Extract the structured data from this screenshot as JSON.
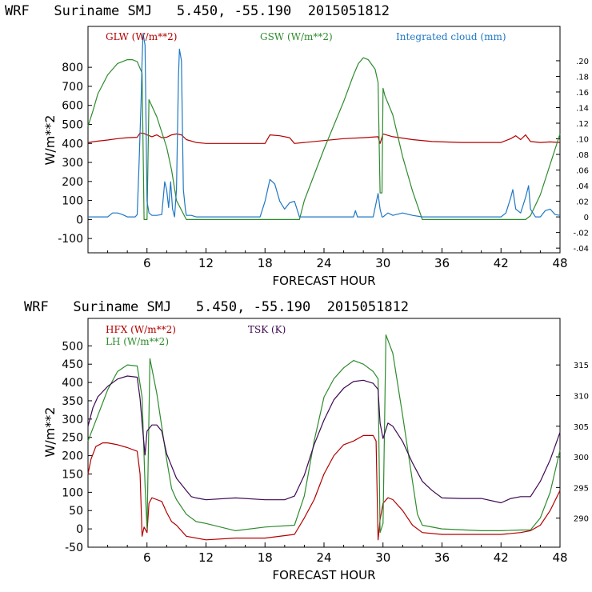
{
  "chart_data": [
    {
      "type": "line",
      "title": "WRF   Suriname SMJ   5.450, -55.190  2015051812",
      "xlabel": "FORECAST HOUR",
      "ylabel": "W/m**2",
      "xlim": [
        0,
        48
      ],
      "ylim": [
        -175,
        1015
      ],
      "xticks": [
        "6",
        "12",
        "18",
        "24",
        "30",
        "36",
        "42",
        "48"
      ],
      "yticks": [
        "800",
        "700",
        "600",
        "500",
        "400",
        "300",
        "200",
        "100",
        "0",
        "-100"
      ],
      "y2lim": [
        -0.046,
        0.244
      ],
      "y2ticks": [
        ".20",
        ".18",
        ".16",
        ".14",
        ".12",
        ".10",
        ".08",
        ".06",
        ".04",
        ".02",
        "0",
        "-.02",
        "-.04"
      ],
      "series": [
        {
          "name": "GLW (W/m**2)",
          "axis": "left",
          "color": "#b30000",
          "x": [
            0,
            1,
            2,
            3,
            4,
            5,
            5.3,
            5.7,
            6,
            6.5,
            7,
            7.5,
            8,
            8.5,
            9,
            9.5,
            10,
            11,
            12,
            14,
            16,
            18,
            18.5,
            19.5,
            20.5,
            21,
            22,
            24,
            26,
            28,
            29.5,
            29.7,
            30,
            31,
            33,
            35,
            38,
            40,
            42,
            43,
            43.5,
            44,
            44.5,
            45,
            46,
            47,
            48
          ],
          "y": [
            405,
            412,
            418,
            425,
            430,
            432,
            455,
            452,
            445,
            435,
            445,
            430,
            432,
            445,
            450,
            445,
            420,
            405,
            400,
            400,
            400,
            400,
            445,
            440,
            430,
            400,
            405,
            415,
            425,
            430,
            435,
            400,
            450,
            435,
            420,
            410,
            405,
            405,
            405,
            425,
            440,
            420,
            445,
            410,
            405,
            408,
            405
          ]
        },
        {
          "name": "GSW (W/m**2)",
          "axis": "left",
          "color": "#2e8b2e",
          "x": [
            0,
            0.5,
            1,
            2,
            3,
            4,
            4.5,
            5,
            5.5,
            5.7,
            6,
            6.2,
            7,
            8,
            8.5,
            9,
            10,
            11,
            12,
            21.5,
            22,
            24,
            26,
            27,
            27.5,
            28,
            28.5,
            29.2,
            29.5,
            29.7,
            29.9,
            30,
            30.2,
            31,
            32,
            33,
            34,
            44.5,
            45,
            46,
            47,
            48
          ],
          "y": [
            490,
            570,
            660,
            760,
            820,
            840,
            840,
            830,
            770,
            0,
            0,
            630,
            540,
            380,
            260,
            100,
            0,
            0,
            0,
            0,
            100,
            370,
            620,
            760,
            820,
            850,
            840,
            790,
            720,
            140,
            140,
            690,
            650,
            550,
            330,
            150,
            0,
            0,
            20,
            130,
            290,
            450
          ]
        },
        {
          "name": "Integrated cloud (mm)",
          "axis": "right",
          "color": "#1f77c4",
          "x": [
            0,
            2,
            2.5,
            3,
            3.5,
            4,
            4.8,
            5,
            5.2,
            5.4,
            5.5,
            5.6,
            5.8,
            6,
            6.2,
            6.5,
            7,
            7.5,
            7.8,
            8,
            8.2,
            8.4,
            8.6,
            8.8,
            9,
            9.2,
            9.3,
            9.5,
            9.7,
            9.9,
            10,
            10.5,
            11,
            12,
            17.5,
            18,
            18.5,
            19,
            19.5,
            20,
            20.5,
            21,
            21.5,
            27,
            27.2,
            27.4,
            29,
            29.5,
            29.7,
            29.9,
            30,
            30.5,
            31,
            32,
            33,
            34,
            42,
            42.5,
            43,
            43.2,
            43.5,
            44,
            44.5,
            44.8,
            45,
            45.5,
            46,
            46.5,
            47,
            47.5,
            48
          ],
          "y": [
            0,
            0,
            0.005,
            0.005,
            0.003,
            0,
            0,
            0.003,
            0.07,
            0.15,
            0.2,
            0.235,
            0.22,
            0.02,
            0.005,
            0.002,
            0.002,
            0.003,
            0.045,
            0.035,
            0.012,
            0.045,
            0.01,
            0,
            0.035,
            0.18,
            0.215,
            0.2,
            0.035,
            0.01,
            0.002,
            0.002,
            0,
            0,
            0,
            0.02,
            0.048,
            0.042,
            0.02,
            0.01,
            0.018,
            0.02,
            0,
            0,
            0.008,
            0,
            0,
            0.03,
            0.01,
            0,
            0,
            0.005,
            0.002,
            0.005,
            0.002,
            0,
            0,
            0.005,
            0.025,
            0.035,
            0.01,
            0.005,
            0.025,
            0.04,
            0.01,
            0,
            0,
            0.008,
            0.01,
            0.003,
            0.002
          ]
        }
      ]
    },
    {
      "type": "line",
      "title": "WRF   Suriname SMJ   5.450, -55.190  2015051812",
      "xlabel": "FORECAST HOUR",
      "ylabel": "W/m**2",
      "xlim": [
        0,
        48
      ],
      "ylim": [
        -50,
        575
      ],
      "xticks": [
        "6",
        "12",
        "18",
        "24",
        "30",
        "36",
        "42",
        "48"
      ],
      "yticks": [
        "500",
        "450",
        "400",
        "350",
        "300",
        "250",
        "200",
        "150",
        "100",
        "50",
        "0",
        "-50"
      ],
      "y2lim": [
        285.25,
        322.6
      ],
      "y2ticks": [
        "315",
        "310",
        "305",
        "300",
        "295",
        "290"
      ],
      "series": [
        {
          "name": "HFX (W/m**2)",
          "axis": "left",
          "color": "#b30000",
          "x": [
            0,
            0.3,
            0.8,
            1.5,
            2,
            3,
            4,
            5,
            5.3,
            5.5,
            5.7,
            6,
            6.2,
            6.5,
            7,
            7.5,
            8,
            8.5,
            9,
            10,
            12,
            15,
            18,
            21,
            22,
            23,
            24,
            25,
            26,
            27,
            28,
            29,
            29.3,
            29.5,
            29.7,
            30,
            30.5,
            31,
            32,
            33,
            34,
            36,
            40,
            42,
            44,
            45,
            46,
            47,
            48
          ],
          "y": [
            150,
            190,
            225,
            235,
            235,
            230,
            222,
            212,
            150,
            -20,
            5,
            -10,
            70,
            85,
            80,
            75,
            45,
            20,
            10,
            -20,
            -30,
            -25,
            -25,
            -15,
            30,
            80,
            150,
            200,
            230,
            240,
            255,
            255,
            240,
            -30,
            25,
            70,
            85,
            80,
            50,
            10,
            -10,
            -15,
            -15,
            -15,
            -10,
            -5,
            10,
            50,
            105
          ]
        },
        {
          "name": "LH (W/m**2)",
          "axis": "left",
          "color": "#2e8b2e",
          "x": [
            0,
            1,
            2,
            3,
            4,
            5,
            5.5,
            5.8,
            6,
            6.3,
            7,
            8,
            8.5,
            9,
            10,
            11,
            12,
            15,
            18,
            21,
            22,
            23,
            24,
            25,
            26,
            27,
            28,
            29,
            29.5,
            29.7,
            30,
            30.3,
            31,
            32,
            33,
            33.5,
            34,
            36,
            40,
            42,
            44,
            45,
            46,
            47,
            48
          ],
          "y": [
            240,
            310,
            380,
            430,
            448,
            445,
            360,
            120,
            0,
            465,
            370,
            190,
            110,
            80,
            40,
            20,
            15,
            -5,
            5,
            10,
            90,
            240,
            360,
            410,
            440,
            460,
            450,
            430,
            410,
            -10,
            15,
            530,
            480,
            310,
            130,
            40,
            10,
            0,
            -5,
            -5,
            -3,
            -3,
            30,
            100,
            215
          ]
        },
        {
          "name": "TSK (K)",
          "axis": "right",
          "color": "#3d0a52",
          "x": [
            0,
            0.5,
            1,
            2,
            3,
            4,
            5,
            5.3,
            5.5,
            5.8,
            6,
            6.5,
            7,
            7.5,
            8,
            9,
            10,
            10.5,
            11,
            12,
            15,
            18,
            20,
            21,
            22,
            23,
            24,
            25,
            26,
            27,
            28,
            29,
            29.5,
            29.7,
            30,
            30.5,
            31,
            32,
            33,
            34,
            35,
            36,
            38,
            40,
            42,
            43,
            44,
            45,
            46,
            47,
            48
          ],
          "y": [
            305,
            308,
            309.8,
            311.5,
            312.7,
            313.2,
            313,
            309.5,
            305.5,
            300.3,
            304.2,
            305.2,
            305.2,
            304.2,
            300.5,
            296.5,
            294.5,
            293.5,
            293.3,
            293,
            293.3,
            293,
            293,
            293.6,
            297,
            302,
            306,
            309.3,
            311.2,
            312.3,
            312.5,
            312,
            311,
            305.5,
            303,
            305.5,
            305,
            302.5,
            299,
            296,
            294.5,
            293.3,
            293.2,
            293.2,
            292.5,
            293.2,
            293.5,
            293.5,
            296,
            299.5,
            304
          ]
        }
      ]
    }
  ]
}
